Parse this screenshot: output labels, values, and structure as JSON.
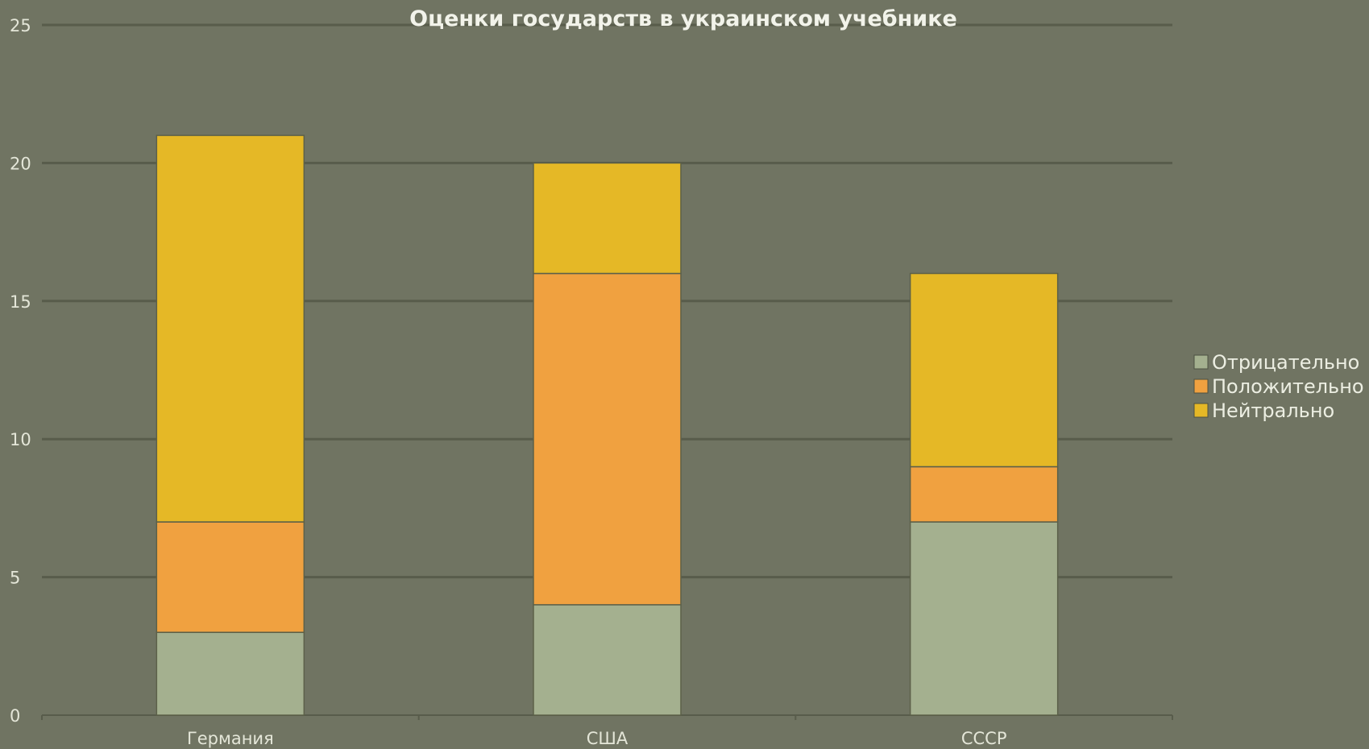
{
  "chart_data": {
    "type": "bar",
    "stacked": true,
    "title": "Оценки государств в украинском учебнике",
    "xlabel": "",
    "ylabel": "",
    "categories": [
      "Германия",
      "США",
      "СССР"
    ],
    "series": [
      {
        "name": "Отрицательно",
        "values": [
          3,
          4,
          7
        ],
        "color": "#a4b08f"
      },
      {
        "name": "Положительно",
        "values": [
          4,
          12,
          2
        ],
        "color": "#f0a140"
      },
      {
        "name": "Нейтрально",
        "values": [
          14,
          4,
          7
        ],
        "color": "#e5b826"
      }
    ],
    "ylim": [
      0,
      25
    ],
    "yticks": [
      0,
      5,
      10,
      15,
      20,
      25
    ],
    "grid": true,
    "legend": "right",
    "colors": {
      "background": "#707462",
      "gridline": "#585c4b",
      "axis_text": "#e4e6d8"
    }
  }
}
